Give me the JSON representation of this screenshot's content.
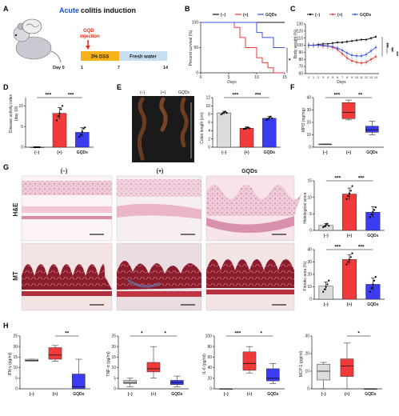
{
  "colors": {
    "control": "#dcdcdc",
    "dss": "#f23a3a",
    "gqds": "#3b3bf2",
    "dss_line": "#e83a3a",
    "gqds_line": "#3a55ee",
    "control_line": "#111111"
  },
  "panels": {
    "a": {
      "label": "A",
      "title_accent": "Acute",
      "title_rest": "colitis induction",
      "injection_line1": "GQD",
      "injection_line2": "injection",
      "dss_label": "3% DSS",
      "water_label": "Fresh water",
      "days": [
        "Day 0",
        "1",
        "7",
        "14"
      ]
    },
    "b": {
      "label": "B"
    },
    "c": {
      "label": "C"
    },
    "d": {
      "label": "D"
    },
    "e": {
      "label": "E",
      "photo_labels": [
        "(–)",
        "(+)",
        "GQDs"
      ]
    },
    "f": {
      "label": "F"
    },
    "g": {
      "label": "G",
      "columns": [
        "(–)",
        "(+)",
        "GQDs"
      ],
      "rows": [
        "H&E",
        "MT"
      ]
    },
    "h": {
      "label": "H"
    }
  },
  "groups": [
    "(–)",
    "(+)",
    "GQDs"
  ],
  "chart_data": [
    {
      "type": "line",
      "id": "survival",
      "ylabel": "Percent survival (%)",
      "xlabel": "Days",
      "xlim": [
        0,
        15
      ],
      "ylim": [
        0,
        100
      ],
      "xticks": [
        0,
        5,
        10,
        15
      ],
      "yticks": [
        0,
        50,
        100
      ],
      "legend": [
        "(–)",
        "(+)",
        "GQDs"
      ],
      "series": [
        {
          "name": "(–)",
          "steps": [
            [
              0,
              100
            ],
            [
              15,
              100
            ]
          ]
        },
        {
          "name": "(+)",
          "steps": [
            [
              0,
              100
            ],
            [
              6,
              100
            ],
            [
              6,
              90
            ],
            [
              7,
              90
            ],
            [
              7,
              70
            ],
            [
              8,
              70
            ],
            [
              8,
              50
            ],
            [
              10,
              50
            ],
            [
              10,
              30
            ],
            [
              11,
              30
            ],
            [
              11,
              20
            ],
            [
              12,
              20
            ],
            [
              12,
              10
            ],
            [
              13,
              10
            ],
            [
              13,
              0
            ],
            [
              15,
              0
            ]
          ]
        },
        {
          "name": "GQDs",
          "steps": [
            [
              0,
              100
            ],
            [
              10,
              100
            ],
            [
              10,
              80
            ],
            [
              11,
              80
            ],
            [
              11,
              70
            ],
            [
              13,
              70
            ],
            [
              13,
              50
            ],
            [
              15,
              50
            ]
          ]
        }
      ],
      "significance": "*"
    },
    {
      "type": "line",
      "id": "body_weight",
      "ylabel": "Body weight (%)",
      "xlabel": "Days",
      "x": [
        0,
        1,
        2,
        3,
        4,
        5,
        6,
        7,
        8,
        9,
        10,
        11,
        12,
        13,
        14
      ],
      "ylim": [
        60,
        130
      ],
      "yticks": [
        60,
        70,
        80,
        90,
        100,
        110,
        120,
        130
      ],
      "legend": [
        "(–)",
        "(+)",
        "GQDs"
      ],
      "series": [
        {
          "name": "(–)",
          "values": [
            100,
            100,
            101,
            102,
            102,
            103,
            104,
            104,
            105,
            106,
            107,
            108,
            108,
            110,
            112
          ]
        },
        {
          "name": "(+)",
          "values": [
            100,
            100,
            100,
            99,
            99,
            97,
            94,
            88,
            82,
            78,
            76,
            75,
            76,
            80,
            84
          ]
        },
        {
          "name": "GQDs",
          "values": [
            100,
            100,
            100,
            100,
            99,
            98,
            96,
            93,
            89,
            86,
            85,
            85,
            87,
            92,
            97
          ]
        }
      ],
      "significance": [
        "***",
        "***",
        "***"
      ]
    },
    {
      "type": "bar",
      "id": "dai",
      "ylabel": "Disease activity index",
      "ylabel2": "(day 10)",
      "categories": [
        "(–)",
        "(+)",
        "GQDs"
      ],
      "values": [
        0,
        8.2,
        3.6
      ],
      "errors": [
        0,
        1.4,
        1.1
      ],
      "ylim": [
        0,
        12
      ],
      "yticks": [
        0,
        5,
        10
      ],
      "points": [
        [
          0,
          0,
          0,
          0,
          0
        ],
        [
          6.5,
          7.5,
          8.2,
          9.2,
          10.0
        ],
        [
          2.5,
          3.0,
          3.8,
          4.5,
          4.8
        ]
      ],
      "significance": [
        {
          "from": 0,
          "to": 1,
          "label": "***"
        },
        {
          "from": 1,
          "to": 2,
          "label": "***"
        }
      ]
    },
    {
      "type": "bar",
      "id": "colon_length",
      "ylabel": "Colon length (cm)",
      "categories": [
        "(–)",
        "(+)",
        "GQDs"
      ],
      "values": [
        8.3,
        4.6,
        7.0
      ],
      "errors": [
        0.4,
        0.3,
        0.5
      ],
      "ylim": [
        0,
        12
      ],
      "yticks": [
        0,
        2,
        4,
        6,
        8,
        10,
        12
      ],
      "points": [
        [
          7.9,
          8.2,
          8.4,
          8.6,
          8.3
        ],
        [
          4.4,
          4.5,
          4.7,
          4.8,
          4.6
        ],
        [
          6.6,
          6.9,
          7.1,
          7.4,
          7.0
        ]
      ],
      "significance": [
        {
          "from": 0,
          "to": 1,
          "label": "***"
        },
        {
          "from": 1,
          "to": 2,
          "label": "***"
        }
      ]
    },
    {
      "type": "box",
      "id": "mpo",
      "ylabel": "MPO (ng/mg)",
      "categories": [
        "(–)",
        "(+)",
        "GQDs"
      ],
      "boxes": [
        {
          "min": 2.5,
          "q1": 2.5,
          "median": 2.5,
          "q3": 2.5,
          "max": 2.5
        },
        {
          "min": 22,
          "q1": 23,
          "median": 28,
          "q3": 36,
          "max": 38
        },
        {
          "min": 10,
          "q1": 12,
          "median": 14,
          "q3": 17,
          "max": 21
        }
      ],
      "ylim": [
        0,
        40
      ],
      "yticks": [
        0,
        10,
        20,
        30,
        40
      ],
      "significance": [
        {
          "from": 0,
          "to": 1,
          "label": "***"
        },
        {
          "from": 1,
          "to": 2,
          "label": "**"
        }
      ]
    },
    {
      "type": "bar",
      "id": "histological_score",
      "ylabel": "Histological score",
      "categories": [
        "(–)",
        "(+)",
        "GQDs"
      ],
      "values": [
        1.5,
        11.0,
        5.5
      ],
      "errors": [
        0.6,
        1.8,
        1.7
      ],
      "ylim": [
        0,
        15
      ],
      "yticks": [
        0,
        5,
        10,
        15
      ],
      "points": [
        [
          1,
          1.2,
          1.6,
          2.0,
          1.4
        ],
        [
          9.5,
          10.4,
          11.2,
          12.0,
          13.4
        ],
        [
          4.0,
          4.8,
          5.6,
          6.2,
          7.0
        ]
      ],
      "significance": [
        {
          "from": 0,
          "to": 1,
          "label": "***"
        },
        {
          "from": 1,
          "to": 2,
          "label": "***"
        }
      ]
    },
    {
      "type": "bar",
      "id": "fibrotic_area",
      "ylabel": "Fibrotic area (%)",
      "categories": [
        "(–)",
        "(+)",
        "GQDs"
      ],
      "values": [
        10.5,
        32.0,
        12.0
      ],
      "errors": [
        3.5,
        4.0,
        5.0
      ],
      "ylim": [
        0,
        40
      ],
      "yticks": [
        0,
        10,
        20,
        30,
        40
      ],
      "points": [
        [
          6,
          8,
          10,
          12,
          15
        ],
        [
          28,
          30,
          32,
          34,
          37
        ],
        [
          6,
          9,
          12,
          15,
          18
        ]
      ],
      "significance": [
        {
          "from": 0,
          "to": 1,
          "label": "***"
        },
        {
          "from": 1,
          "to": 2,
          "label": "***"
        }
      ]
    },
    {
      "type": "box",
      "id": "ifn_gamma",
      "ylabel": "IFN-γ (pg/ml)",
      "categories": [
        "(–)",
        "(+)",
        "GQDs"
      ],
      "boxes": [
        {
          "min": 13,
          "q1": 13,
          "median": 13.5,
          "q3": 14,
          "max": 14
        },
        {
          "min": 13,
          "q1": 14,
          "median": 16,
          "q3": 19.5,
          "max": 20.5
        },
        {
          "min": 0,
          "q1": 0,
          "median": 1,
          "q3": 7,
          "max": 14
        }
      ],
      "ylim": [
        0,
        25
      ],
      "yticks": [
        0,
        5,
        10,
        15,
        20,
        25
      ],
      "significance": [
        {
          "from": 1,
          "to": 2,
          "label": "**"
        }
      ]
    },
    {
      "type": "box",
      "id": "tnf_alpha",
      "ylabel": "TNF-α (pg/ml)",
      "categories": [
        "(–)",
        "(+)",
        "GQDs"
      ],
      "boxes": [
        {
          "min": 1,
          "q1": 2.5,
          "median": 3,
          "q3": 4,
          "max": 5
        },
        {
          "min": 5,
          "q1": 8,
          "median": 9.5,
          "q3": 12.5,
          "max": 20
        },
        {
          "min": 1,
          "q1": 2,
          "median": 3,
          "q3": 4,
          "max": 6
        }
      ],
      "ylim": [
        0,
        25
      ],
      "yticks": [
        0,
        5,
        10,
        15,
        20,
        25
      ],
      "significance": [
        {
          "from": 0,
          "to": 1,
          "label": "*"
        },
        {
          "from": 1,
          "to": 2,
          "label": "*"
        }
      ]
    },
    {
      "type": "box",
      "id": "il6",
      "ylabel": "IL-6 (pg/ml)",
      "categories": [
        "(–)",
        "(+)",
        "GQDs"
      ],
      "boxes": [
        {
          "min": 0,
          "q1": 0,
          "median": 0,
          "q3": 0,
          "max": 0
        },
        {
          "min": 30,
          "q1": 35,
          "median": 48,
          "q3": 70,
          "max": 80
        },
        {
          "min": 10,
          "q1": 15,
          "median": 20,
          "q3": 38,
          "max": 48
        }
      ],
      "ylim": [
        0,
        100
      ],
      "yticks": [
        0,
        20,
        40,
        60,
        80,
        100
      ],
      "significance": [
        {
          "from": 0,
          "to": 1,
          "label": "***"
        },
        {
          "from": 1,
          "to": 2,
          "label": "*"
        }
      ]
    },
    {
      "type": "box",
      "id": "mcp1",
      "ylabel": "MCP-1 (pg/ml)",
      "categories": [
        "(–)",
        "(+)",
        "GQDs"
      ],
      "boxes": [
        {
          "min": 0,
          "q1": 5,
          "median": 10,
          "q3": 14,
          "max": 15
        },
        {
          "min": 0,
          "q1": 7,
          "median": 13,
          "q3": 17,
          "max": 26
        },
        {
          "min": 0,
          "q1": 0,
          "median": 0,
          "q3": 0,
          "max": 0
        }
      ],
      "ylim": [
        0,
        30
      ],
      "yticks": [
        0,
        10,
        20,
        30
      ],
      "significance": [
        {
          "from": 1,
          "to": 2,
          "label": "*"
        }
      ]
    }
  ]
}
